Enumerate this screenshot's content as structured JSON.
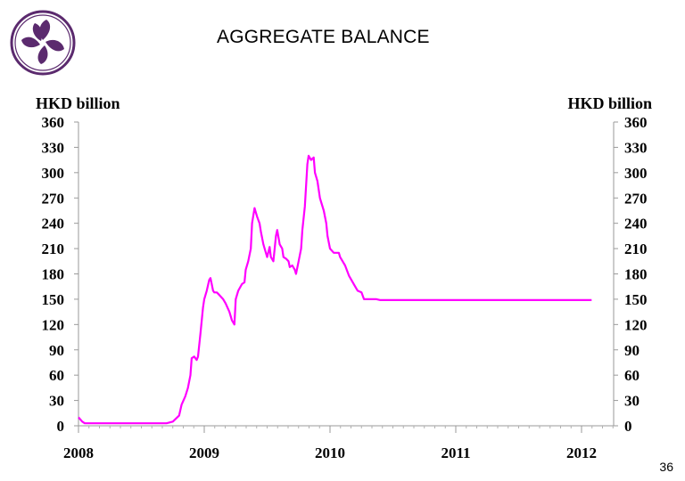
{
  "slide": {
    "title": "AGGREGATE BALANCE",
    "page_number": "36",
    "logo_icon": "bauhinia-flower-logo",
    "logo_color": "#5b2a6e"
  },
  "chart_data": {
    "type": "line",
    "title": "AGGREGATE BALANCE",
    "ylabel_left": "HKD billion",
    "ylabel_right": "HKD billion",
    "xlabel": "",
    "ylim": [
      0,
      360
    ],
    "yticks": [
      0,
      30,
      60,
      90,
      120,
      150,
      180,
      210,
      240,
      270,
      300,
      330,
      360
    ],
    "xlim": [
      2008.0,
      2012.25
    ],
    "xticks": [
      "2008",
      "2009",
      "2010",
      "2011",
      "2012"
    ],
    "xtick_values": [
      2008,
      2009,
      2010,
      2011,
      2012
    ],
    "grid": false,
    "legend": "none",
    "series": [
      {
        "color": "#ff00ff",
        "x": [
          2008.0,
          2008.03,
          2008.05,
          2008.12,
          2008.2,
          2008.25,
          2008.35,
          2008.4,
          2008.5,
          2008.55,
          2008.62,
          2008.7,
          2008.75,
          2008.8,
          2008.82,
          2008.85,
          2008.87,
          2008.89,
          2008.9,
          2008.92,
          2008.94,
          2008.95,
          2008.97,
          2008.99,
          2009.0,
          2009.02,
          2009.04,
          2009.05,
          2009.07,
          2009.08,
          2009.1,
          2009.12,
          2009.15,
          2009.17,
          2009.2,
          2009.22,
          2009.24,
          2009.25,
          2009.27,
          2009.3,
          2009.32,
          2009.33,
          2009.35,
          2009.37,
          2009.38,
          2009.4,
          2009.42,
          2009.44,
          2009.45,
          2009.47,
          2009.48,
          2009.5,
          2009.52,
          2009.53,
          2009.55,
          2009.57,
          2009.58,
          2009.6,
          2009.62,
          2009.63,
          2009.65,
          2009.67,
          2009.68,
          2009.7,
          2009.72,
          2009.73,
          2009.75,
          2009.77,
          2009.78,
          2009.8,
          2009.82,
          2009.83,
          2009.85,
          2009.87,
          2009.88,
          2009.9,
          2009.92,
          2009.93,
          2009.95,
          2009.97,
          2009.98,
          2010.0,
          2010.03,
          2010.05,
          2010.07,
          2010.08,
          2010.1,
          2010.12,
          2010.15,
          2010.2,
          2010.22,
          2010.25,
          2010.27,
          2010.3,
          2010.32,
          2010.35,
          2010.37,
          2010.4,
          2011.0,
          2011.5,
          2012.0,
          2012.08
        ],
        "y": [
          10,
          5,
          3,
          3,
          3,
          3,
          3,
          3,
          3,
          3,
          3,
          3,
          5,
          12,
          25,
          35,
          45,
          60,
          80,
          82,
          78,
          82,
          110,
          140,
          150,
          160,
          173,
          175,
          160,
          158,
          158,
          155,
          150,
          145,
          135,
          125,
          120,
          150,
          160,
          168,
          170,
          185,
          195,
          210,
          240,
          258,
          248,
          240,
          230,
          215,
          210,
          200,
          212,
          200,
          195,
          225,
          232,
          215,
          210,
          200,
          198,
          195,
          188,
          190,
          185,
          180,
          195,
          210,
          232,
          260,
          310,
          320,
          315,
          318,
          300,
          290,
          270,
          265,
          255,
          240,
          225,
          210,
          205,
          205,
          205,
          200,
          195,
          190,
          178,
          165,
          160,
          158,
          150,
          150,
          150,
          150,
          150,
          149,
          149,
          149,
          149,
          149
        ]
      }
    ]
  }
}
